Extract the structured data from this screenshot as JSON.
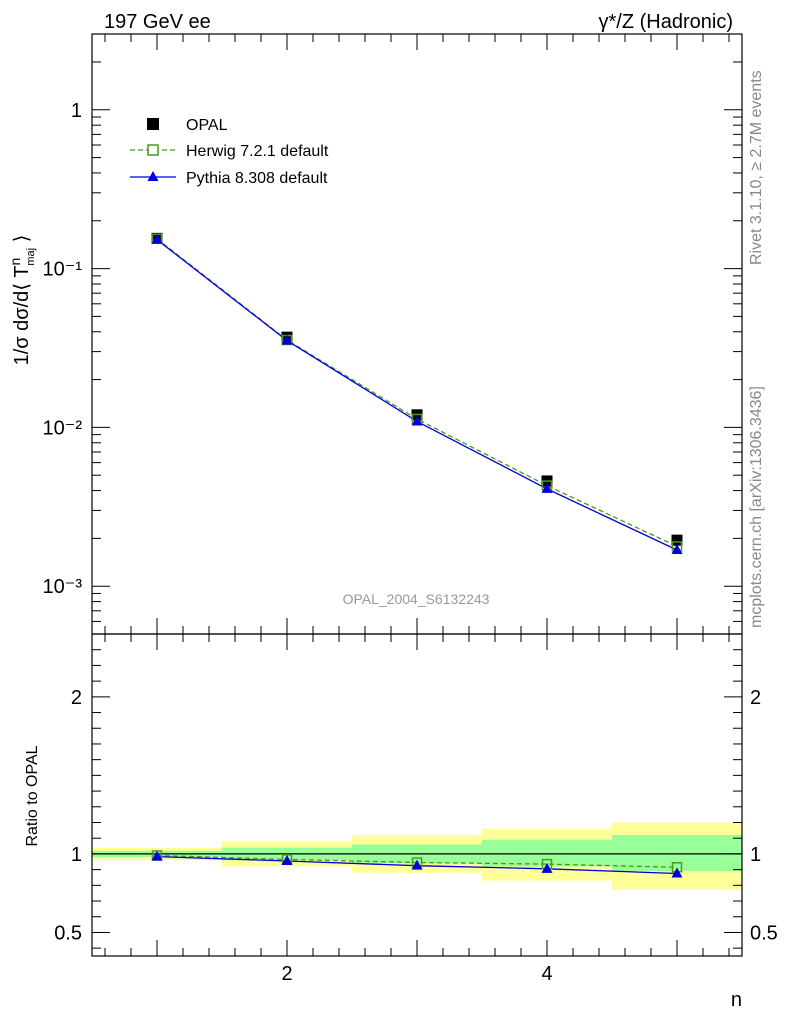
{
  "header": {
    "left_title": "197 GeV ee",
    "right_title": "γ*/Z (Hadronic)"
  },
  "side_labels": {
    "rivet": "Rivet 3.1.10, ≥ 2.7M events",
    "mcplots": "mcplots.cern.ch [arXiv:1306.3436]"
  },
  "watermark": "OPAL_2004_S6132243",
  "chart_data": [
    {
      "type": "scatter",
      "panel": "main",
      "ylabel": "1/σ dσ/d⟨ T^n_maj ⟩",
      "xlabel": "",
      "yscale": "log",
      "ylim": [
        0.0005,
        3
      ],
      "xlim": [
        0.5,
        5.5
      ],
      "y_ticks": [
        "1",
        "10⁻¹",
        "10⁻²",
        "10⁻³"
      ],
      "x": [
        1,
        2,
        3,
        4,
        5
      ],
      "legend_position": "top-left",
      "series": [
        {
          "name": "OPAL",
          "marker": "filled-square",
          "color": "#000000",
          "values": [
            0.155,
            0.037,
            0.012,
            0.0046,
            0.00195
          ]
        },
        {
          "name": "Herwig 7.2.1 default",
          "marker": "open-square",
          "line": "dashed",
          "color": "#4a9a1c",
          "values": [
            0.154,
            0.0355,
            0.0113,
            0.0043,
            0.00178
          ]
        },
        {
          "name": "Pythia 8.308 default",
          "marker": "filled-triangle",
          "line": "solid",
          "color": "#0000dd",
          "values": [
            0.152,
            0.0352,
            0.0109,
            0.0041,
            0.00169
          ]
        }
      ]
    },
    {
      "type": "line",
      "panel": "ratio",
      "ylabel": "Ratio to OPAL",
      "xlabel": "n",
      "ylim": [
        0.35,
        2.4
      ],
      "xlim": [
        0.5,
        5.5
      ],
      "y_ticks": [
        "0.5",
        "1",
        "2"
      ],
      "x_ticks": [
        "2",
        "4"
      ],
      "x": [
        1,
        2,
        3,
        4,
        5
      ],
      "bands": [
        {
          "x_low": 0.5,
          "x_high": 1.5,
          "green": [
            0.98,
            1.02
          ],
          "yellow": [
            0.96,
            1.04
          ]
        },
        {
          "x_low": 1.5,
          "x_high": 2.5,
          "green": [
            0.96,
            1.04
          ],
          "yellow": [
            0.92,
            1.08
          ]
        },
        {
          "x_low": 2.5,
          "x_high": 3.5,
          "green": [
            0.94,
            1.06
          ],
          "yellow": [
            0.88,
            1.12
          ]
        },
        {
          "x_low": 3.5,
          "x_high": 4.5,
          "green": [
            0.92,
            1.09
          ],
          "yellow": [
            0.83,
            1.16
          ]
        },
        {
          "x_low": 4.5,
          "x_high": 5.5,
          "green": [
            0.89,
            1.12
          ],
          "yellow": [
            0.77,
            1.2
          ]
        }
      ],
      "series": [
        {
          "name": "Herwig 7.2.1 default",
          "color": "#4a9a1c",
          "values": [
            0.99,
            0.965,
            0.945,
            0.935,
            0.915
          ]
        },
        {
          "name": "Pythia 8.308 default",
          "color": "#0000dd",
          "values": [
            0.983,
            0.955,
            0.925,
            0.905,
            0.875
          ]
        }
      ]
    }
  ]
}
